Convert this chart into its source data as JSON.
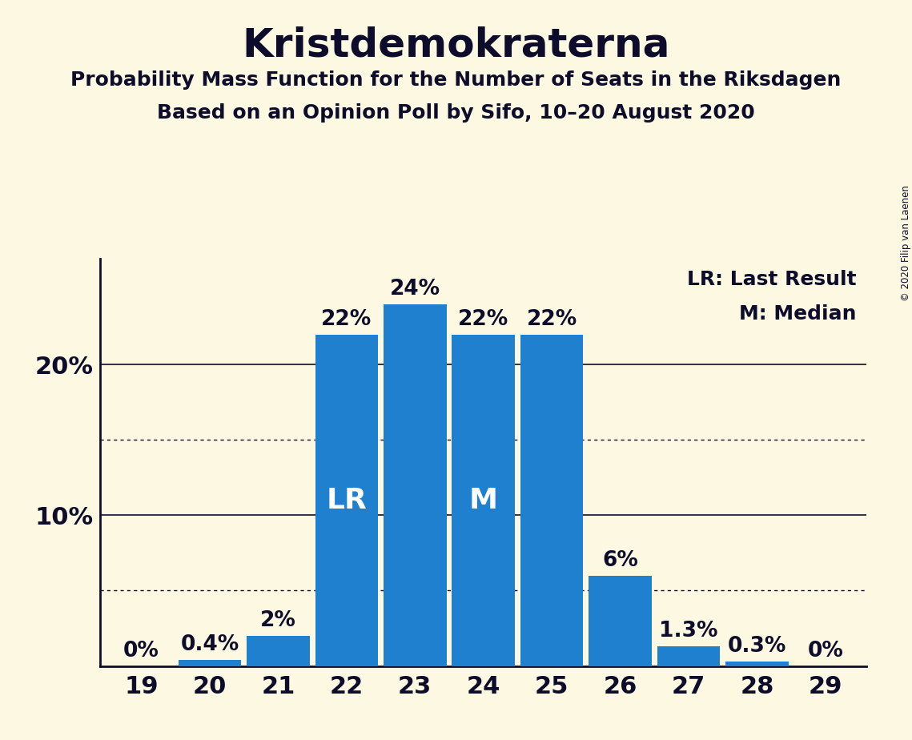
{
  "title": "Kristdemokraterna",
  "subtitle1": "Probability Mass Function for the Number of Seats in the Riksdagen",
  "subtitle2": "Based on an Opinion Poll by Sifo, 10–20 August 2020",
  "copyright": "© 2020 Filip van Laenen",
  "categories": [
    19,
    20,
    21,
    22,
    23,
    24,
    25,
    26,
    27,
    28,
    29
  ],
  "values": [
    0.0,
    0.4,
    2.0,
    22.0,
    24.0,
    22.0,
    22.0,
    6.0,
    1.3,
    0.3,
    0.0
  ],
  "labels": [
    "0%",
    "0.4%",
    "2%",
    "22%",
    "24%",
    "22%",
    "22%",
    "6%",
    "1.3%",
    "0.3%",
    "0%"
  ],
  "bar_color": "#2080d0",
  "background_color": "#fdf8e1",
  "text_color": "#0d0d2b",
  "yticks": [
    0,
    10,
    20
  ],
  "ytick_labels": [
    "",
    "10%",
    "20%"
  ],
  "dotted_lines": [
    5,
    15
  ],
  "solid_lines": [
    10,
    20
  ],
  "lr_bar": 22,
  "median_bar": 24,
  "legend_lr": "LR: Last Result",
  "legend_m": "M: Median",
  "ylim": [
    0,
    27
  ],
  "label_fontsize": 19,
  "tick_fontsize": 22,
  "title_fontsize": 36,
  "subtitle_fontsize": 18,
  "legend_fontsize": 18,
  "bar_label_fontsize": 26
}
